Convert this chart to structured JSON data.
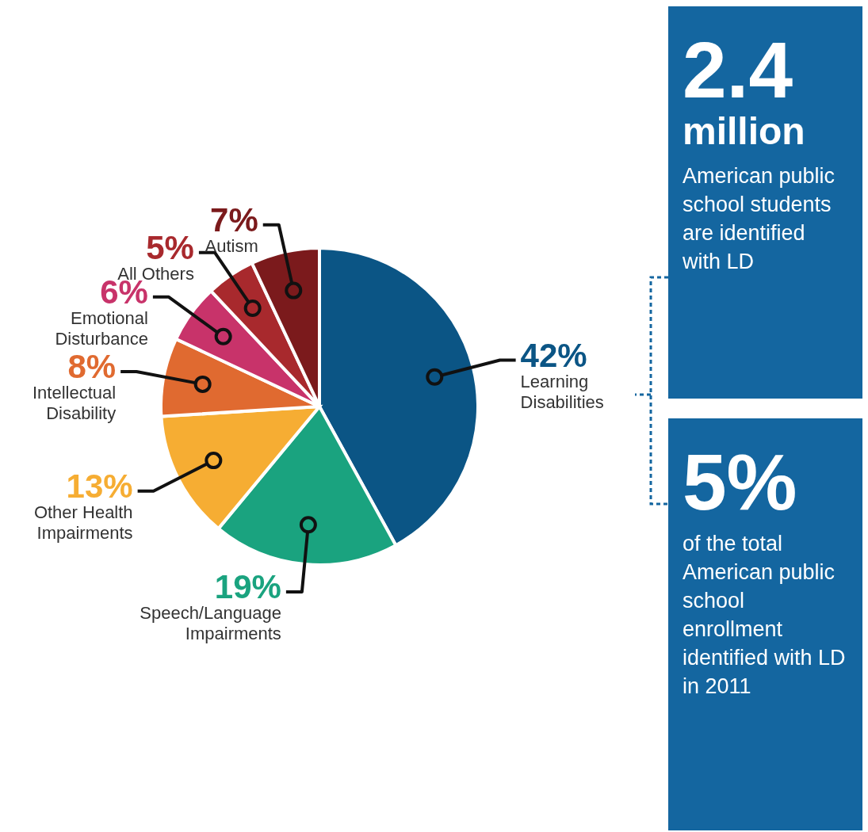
{
  "chart_data": [
    {
      "type": "pie",
      "categories": [
        "Learning Disabilities",
        "Speech/Language Impairments",
        "Other Health Impairments",
        "Intellectual Disability",
        "Emotional Disturbance",
        "All Others",
        "Autism"
      ],
      "values": [
        42,
        19,
        13,
        8,
        6,
        5,
        7
      ],
      "value_labels": [
        "42%",
        "19%",
        "13%",
        "8%",
        "6%",
        "5%",
        "7%"
      ],
      "colors": [
        "#0b5585",
        "#1aa37f",
        "#f6ad33",
        "#e06a30",
        "#c8336a",
        "#a8292d",
        "#7b1a1c"
      ]
    },
    {
      "type": "other",
      "annotations": [
        "2.4",
        "million",
        "American public school students are identified with LD"
      ]
    },
    {
      "type": "other",
      "annotations": [
        "5%",
        "of the total American public school enrollment identified with LD in 2011"
      ]
    }
  ]
}
